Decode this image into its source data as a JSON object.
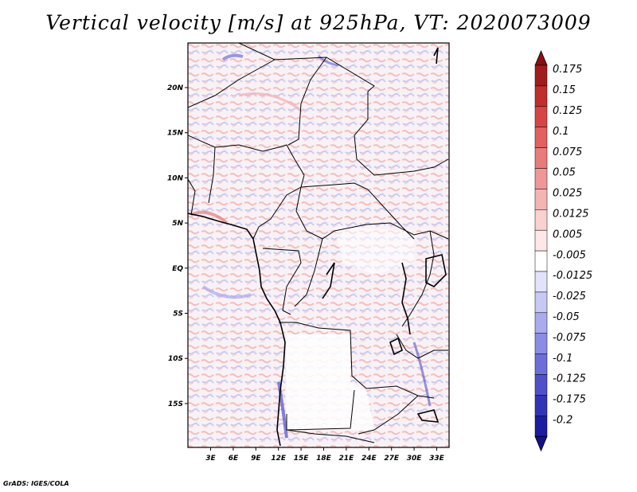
{
  "map": {
    "title": "Vertical velocity [m/s] at 925hPa, VT: 2020073009",
    "variable": "Vertical velocity",
    "units": "m/s",
    "level": "925hPa",
    "valid_time": "2020073009",
    "lat_ticks": [
      "20N",
      "15N",
      "10N",
      "5N",
      "EQ",
      "5S",
      "10S",
      "15S"
    ],
    "lon_ticks": [
      "3E",
      "6E",
      "9E",
      "12E",
      "15E",
      "18E",
      "21E",
      "24E",
      "27E",
      "30E",
      "33E"
    ],
    "credit": "GrADS: IGES/COLA"
  },
  "colorbar": {
    "levels": [
      {
        "label": "0.175",
        "color": "#a11d1d"
      },
      {
        "label": "0.15",
        "color": "#c12e2e"
      },
      {
        "label": "0.125",
        "color": "#d64545"
      },
      {
        "label": "0.1",
        "color": "#e45f5f"
      },
      {
        "label": "0.075",
        "color": "#e97b7b"
      },
      {
        "label": "0.05",
        "color": "#ef9797"
      },
      {
        "label": "0.025",
        "color": "#f4b4b4"
      },
      {
        "label": "0.0125",
        "color": "#f9d1d1"
      },
      {
        "label": "0.005",
        "color": "#fce8e8"
      },
      {
        "label": "-0.005",
        "color": "#ffffff"
      },
      {
        "label": "-0.0125",
        "color": "#e2e2fb"
      },
      {
        "label": "-0.025",
        "color": "#c8c8f5"
      },
      {
        "label": "-0.05",
        "color": "#aaaaef"
      },
      {
        "label": "-0.075",
        "color": "#8c8ce6"
      },
      {
        "label": "-0.1",
        "color": "#6d6ddc"
      },
      {
        "label": "-0.125",
        "color": "#5050cc"
      },
      {
        "label": "-0.175",
        "color": "#3333b8"
      },
      {
        "label": "-0.2",
        "color": "#1c1ca0"
      }
    ],
    "top_arrow_color": "#8a1010",
    "bottom_arrow_color": "#12128a"
  }
}
